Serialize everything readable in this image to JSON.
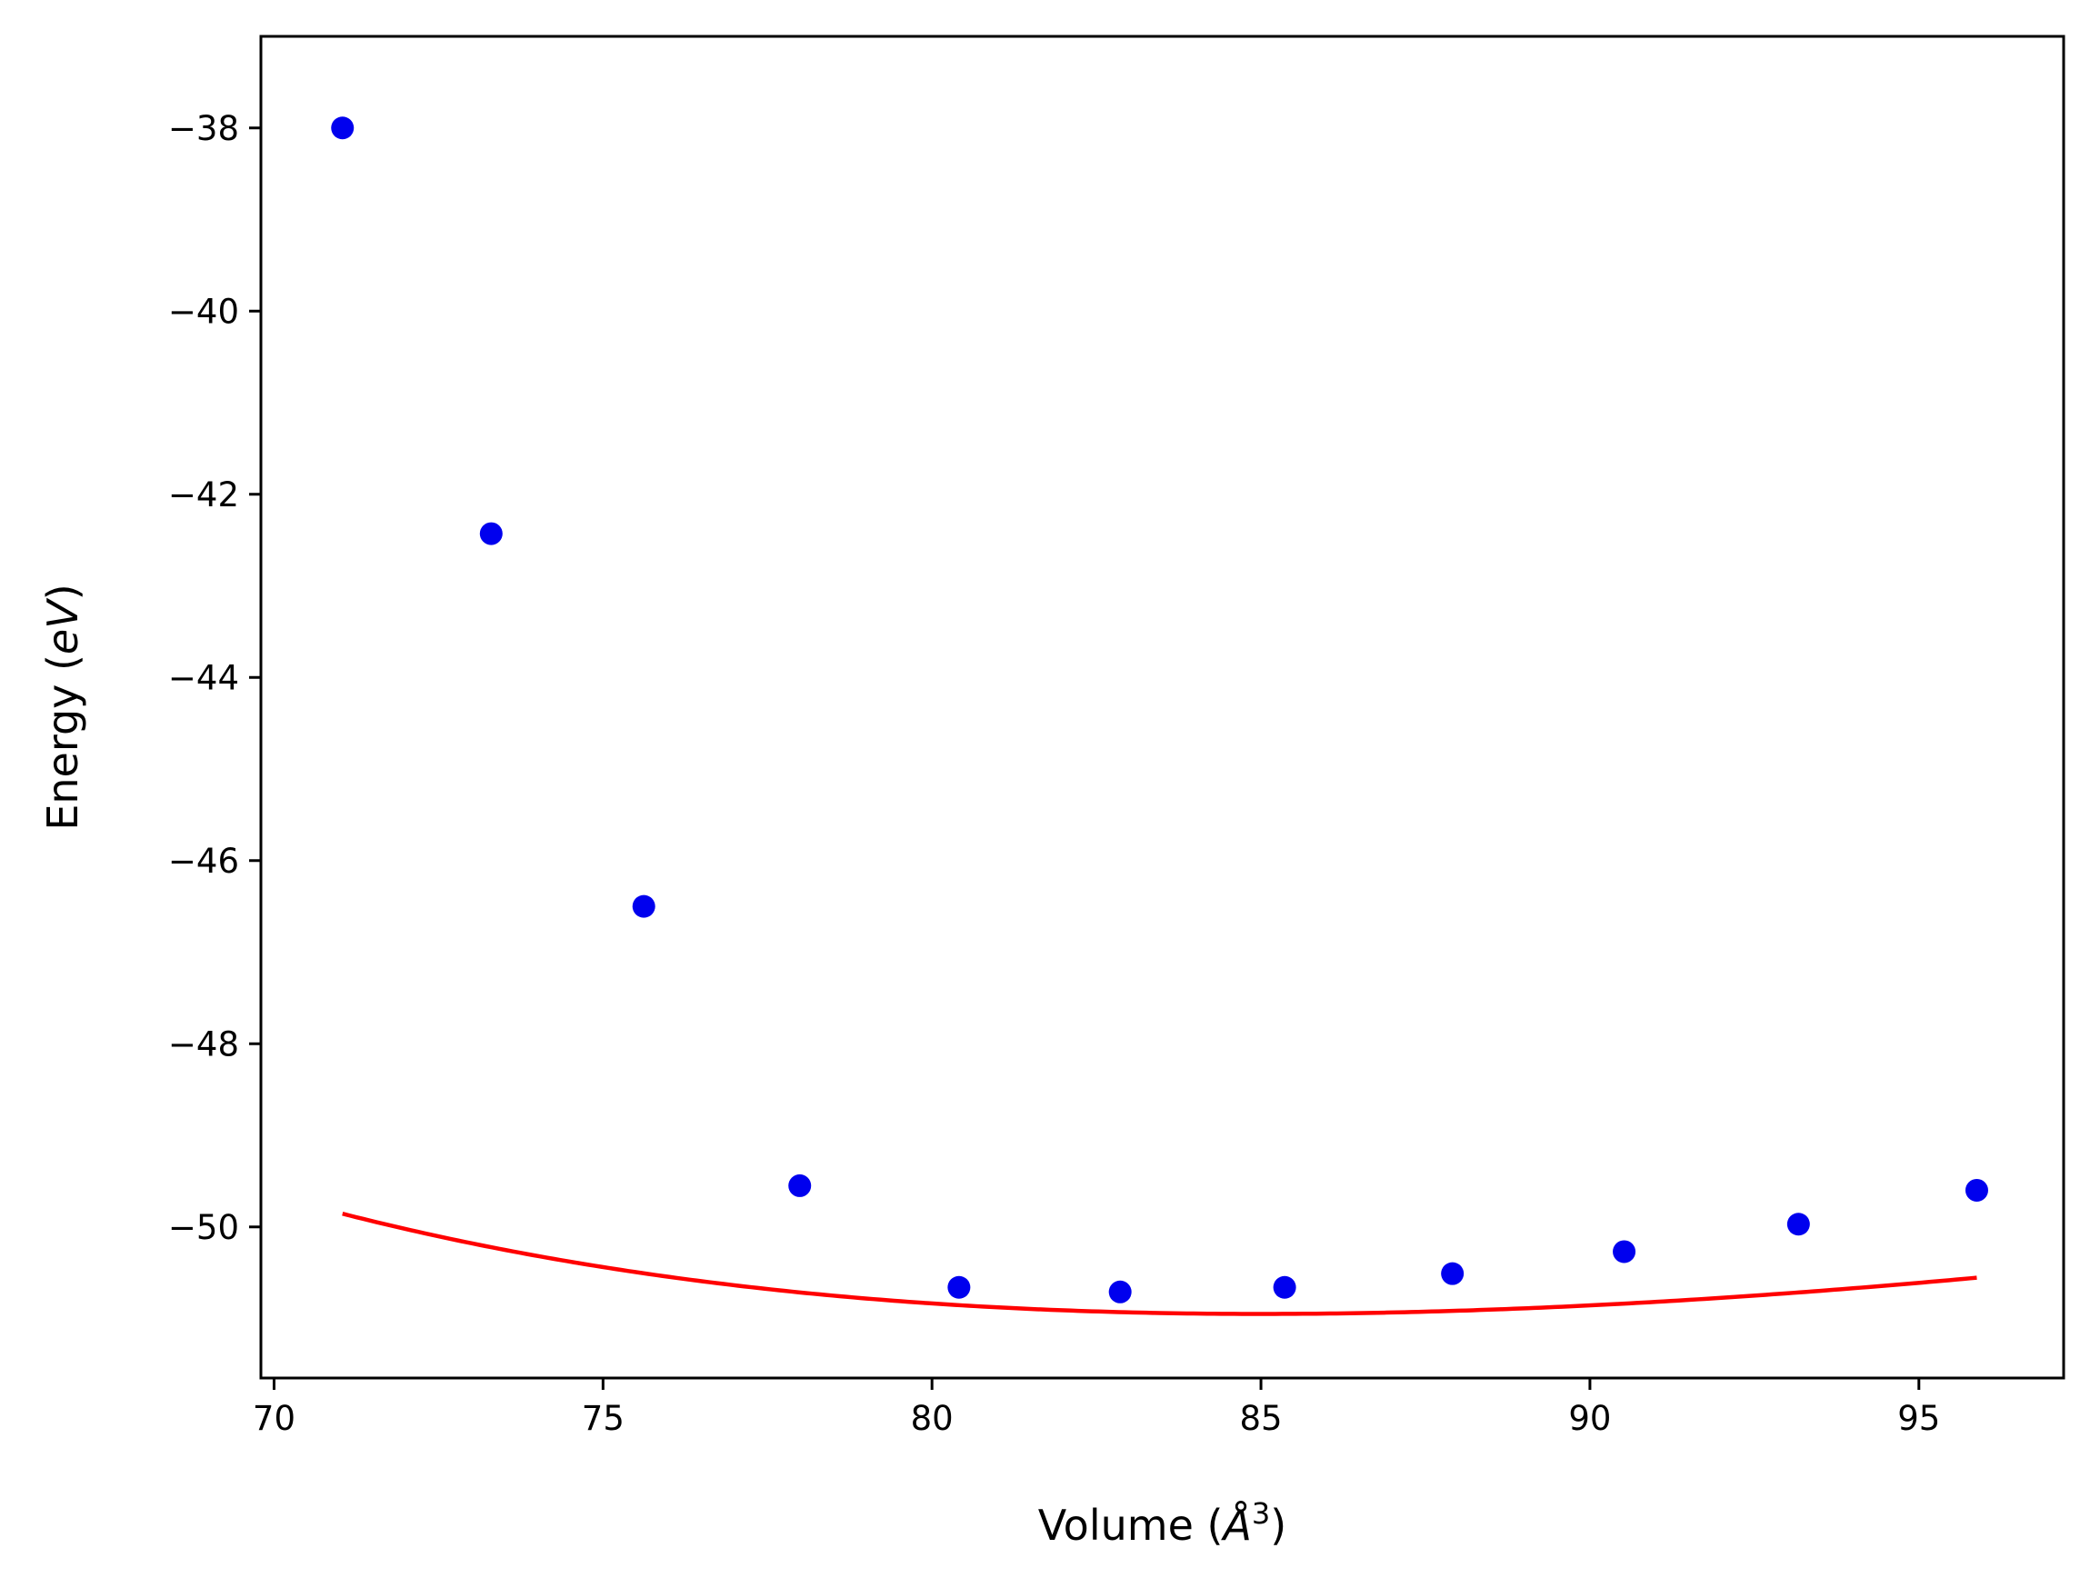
{
  "chart_data": {
    "type": "scatter",
    "title": "",
    "xlabel": "Volume (Å³)",
    "xlabel_parts": {
      "prefix": "Volume (",
      "symbol": "Å",
      "superscript": "3",
      "suffix": ")"
    },
    "ylabel": "Energy (eV)",
    "ylabel_parts": {
      "prefix": "Energy (",
      "symbol": "eV",
      "suffix": ")"
    },
    "xlim": [
      69.8,
      97.2
    ],
    "ylim": [
      -51.65,
      -37.0
    ],
    "x_ticks": [
      70,
      75,
      80,
      85,
      90,
      95
    ],
    "x_tick_labels": [
      "70",
      "75",
      "80",
      "85",
      "90",
      "95"
    ],
    "y_ticks": [
      -38,
      -40,
      -42,
      -44,
      -46,
      -48,
      -50
    ],
    "y_tick_labels": [
      "−38",
      "−40",
      "−42",
      "−44",
      "−46",
      "−48",
      "−50"
    ],
    "grid": false,
    "series": [
      {
        "kind": "points",
        "color": "#0000ee",
        "x": [
          71.04,
          73.3,
          75.62,
          77.99,
          80.41,
          82.86,
          85.36,
          87.91,
          90.52,
          93.17,
          95.88
        ],
        "y": [
          -38.0,
          -42.43,
          -46.5,
          -49.55,
          -50.66,
          -50.71,
          -50.66,
          -50.51,
          -50.27,
          -49.97,
          -49.6
        ]
      },
      {
        "kind": "fit-curve",
        "color": "#ff0000",
        "x_range": [
          71.04,
          95.88
        ],
        "fit": {
          "E0": -50.95,
          "V0": 85.0,
          "B0": 0.7,
          "B0p": 4.2
        }
      }
    ]
  }
}
